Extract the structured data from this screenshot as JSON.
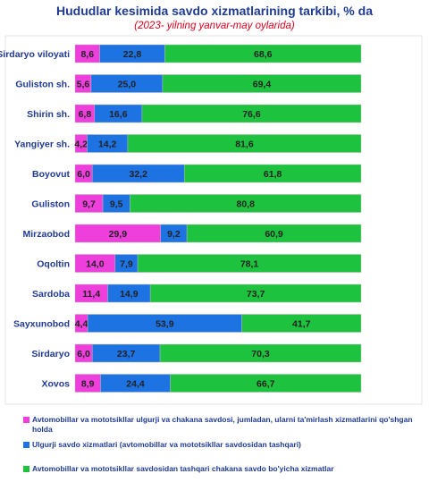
{
  "chart_data": {
    "type": "bar",
    "stacked": true,
    "orientation": "horizontal",
    "title": "Hududlar kesimida savdo xizmatlarining tarkibi, % da",
    "subtitle": "(2023- yilning yanvar-may oylarida)",
    "categories": [
      "Sirdaryo  viloyati",
      "Guliston  sh.",
      "Shirin   sh.",
      "Yangiyer   sh.",
      "Boyovut",
      "Guliston",
      "Mirzaobod",
      "Oqoltin",
      "Sardoba",
      "Sayxunobod",
      "Sirdaryo",
      "Xovos"
    ],
    "value_labels": [
      [
        "8,6",
        "22,8",
        "68,6"
      ],
      [
        "5,6",
        "25,0",
        "69,4"
      ],
      [
        "6,8",
        "16,6",
        "76,6"
      ],
      [
        "4,2",
        "14,2",
        "81,6"
      ],
      [
        "6,0",
        "32,2",
        "61,8"
      ],
      [
        "9,7",
        "9,5",
        "80,8"
      ],
      [
        "29,9",
        "9,2",
        "60,9"
      ],
      [
        "14,0",
        "7,9",
        "78,1"
      ],
      [
        "11,4",
        "14,9",
        "73,7"
      ],
      [
        "4,4",
        "53,9",
        "41,7"
      ],
      [
        "6,0",
        "23,7",
        "70,3"
      ],
      [
        "8,9",
        "24,4",
        "66,7"
      ]
    ],
    "series": [
      {
        "name": "Avtomobillar   va mototsikllar ulgurji va chakana savdosi, jumladan, ularni ta'mirlash xizmatlarini qo'shgan holda",
        "color": "#ee3fdc",
        "values": [
          8.6,
          5.6,
          6.8,
          4.2,
          6.0,
          9.7,
          29.9,
          14.0,
          11.4,
          4.4,
          6.0,
          8.9
        ]
      },
      {
        "name": "Ulgurji savdo  xizmatlari  (avtomobillar   va mototsikllar   savdosidan  tashqari)",
        "color": "#1e73e3",
        "values": [
          22.8,
          25.0,
          16.6,
          14.2,
          32.2,
          9.5,
          9.2,
          7.9,
          14.9,
          53.9,
          23.7,
          24.4
        ]
      },
      {
        "name": "Avtomobillar   va mototsikllar   savdosidan  tashqari chakana savdo bo'yicha  xizmatlar",
        "color": "#1dc23f",
        "values": [
          68.6,
          69.4,
          76.6,
          81.6,
          61.8,
          80.8,
          60.9,
          78.1,
          73.7,
          41.7,
          70.3,
          66.7
        ]
      }
    ],
    "xlim": [
      0,
      100
    ],
    "grid": false,
    "legend_position": "bottom"
  }
}
